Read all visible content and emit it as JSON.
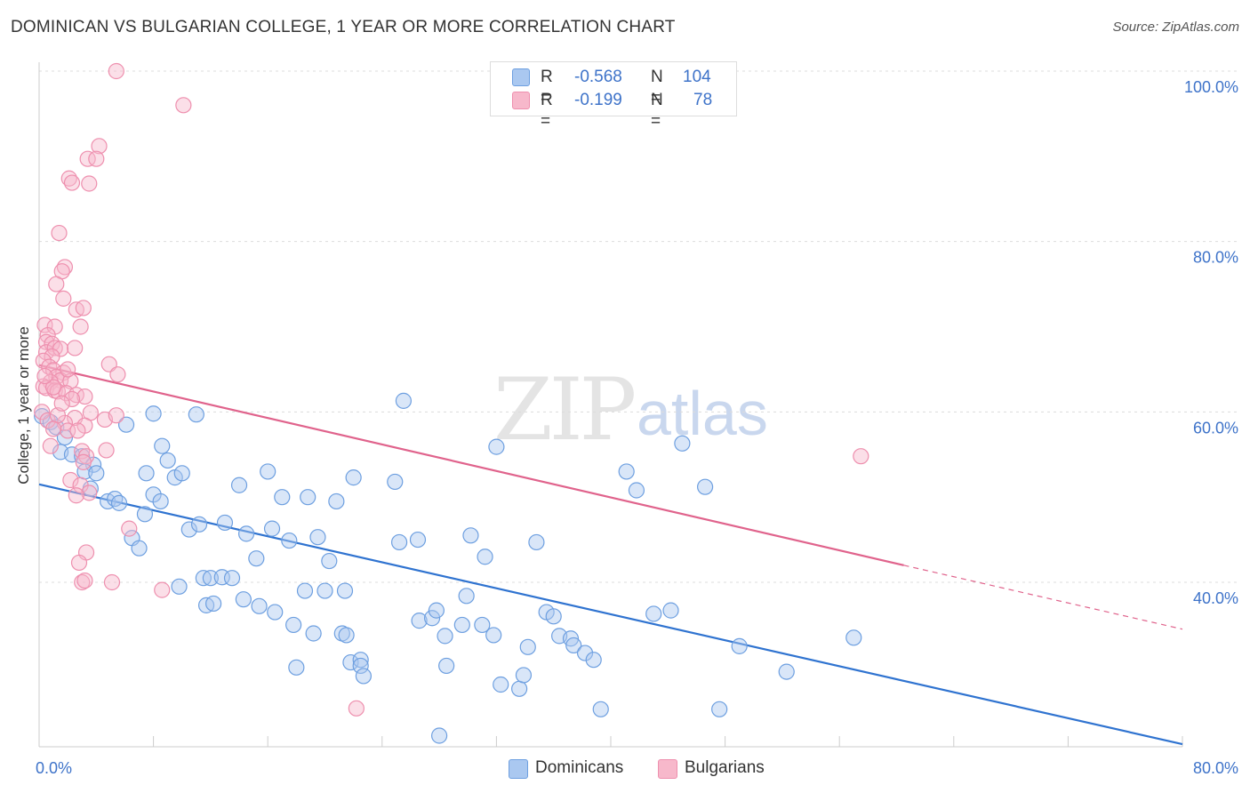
{
  "header": {
    "title": "DOMINICAN VS BULGARIAN COLLEGE, 1 YEAR OR MORE CORRELATION CHART",
    "source": "Source: ZipAtlas.com"
  },
  "watermark": {
    "zip": "ZIP",
    "atlas": "atlas"
  },
  "legend": {
    "rows": [
      {
        "r_label": "R =",
        "r_value": "-0.568",
        "n_label": "N =",
        "n_value": "104",
        "color": "#aac8f0"
      },
      {
        "r_label": "R =",
        "r_value": "-0.199",
        "n_label": "N =",
        "n_value": "78",
        "color": "#f7b8cb"
      }
    ]
  },
  "bottom_legend": {
    "dominicans": "Dominicans",
    "bulgarians": "Bulgarians"
  },
  "chart_data": {
    "type": "scatter",
    "ylabel": "College, 1 year or more",
    "xlim": [
      0,
      80
    ],
    "ylim": [
      20,
      103
    ],
    "x_ticks": [
      {
        "value": 0,
        "label": "0.0%"
      },
      {
        "value": 80,
        "label": "80.0%"
      }
    ],
    "y_ticks": [
      {
        "value": 100,
        "label": "100.0%"
      },
      {
        "value": 80,
        "label": "80.0%"
      },
      {
        "value": 60,
        "label": "60.0%"
      },
      {
        "value": 40,
        "label": "40.0%"
      }
    ],
    "grid": true,
    "legend_position": "top-center",
    "series": [
      {
        "name": "Dominicans",
        "color": "#6d9fe0",
        "fill": "#aac8f0",
        "trend": {
          "x0": 0,
          "y0": 51.5,
          "x1": 80,
          "y1": 21.0,
          "color": "#2f73d0"
        },
        "points": [
          [
            0.2,
            59.5
          ],
          [
            0.8,
            58.8
          ],
          [
            1.2,
            58.2
          ],
          [
            1.8,
            57.0
          ],
          [
            1.5,
            55.3
          ],
          [
            2.3,
            55.0
          ],
          [
            3.0,
            54.8
          ],
          [
            3.8,
            53.8
          ],
          [
            3.2,
            53.0
          ],
          [
            4.0,
            52.8
          ],
          [
            3.6,
            51.0
          ],
          [
            4.8,
            49.5
          ],
          [
            5.3,
            49.8
          ],
          [
            5.6,
            49.3
          ],
          [
            6.1,
            58.5
          ],
          [
            8.0,
            59.8
          ],
          [
            11.0,
            59.7
          ],
          [
            6.5,
            45.2
          ],
          [
            7.0,
            44.0
          ],
          [
            7.5,
            52.8
          ],
          [
            7.4,
            48.0
          ],
          [
            8.0,
            50.3
          ],
          [
            8.5,
            49.5
          ],
          [
            8.6,
            56.0
          ],
          [
            9.0,
            54.3
          ],
          [
            9.5,
            52.3
          ],
          [
            10.0,
            52.8
          ],
          [
            10.5,
            46.2
          ],
          [
            11.2,
            46.8
          ],
          [
            9.8,
            39.5
          ],
          [
            11.5,
            40.5
          ],
          [
            12.0,
            40.5
          ],
          [
            11.7,
            37.3
          ],
          [
            12.2,
            37.5
          ],
          [
            12.8,
            40.6
          ],
          [
            13.5,
            40.5
          ],
          [
            13.0,
            47.0
          ],
          [
            14.0,
            51.4
          ],
          [
            14.5,
            45.7
          ],
          [
            15.2,
            42.8
          ],
          [
            14.3,
            38.0
          ],
          [
            15.4,
            37.2
          ],
          [
            16.5,
            36.5
          ],
          [
            16.0,
            53.0
          ],
          [
            16.3,
            46.3
          ],
          [
            17.0,
            50.0
          ],
          [
            17.5,
            44.9
          ],
          [
            17.8,
            35.0
          ],
          [
            18.0,
            30.0
          ],
          [
            18.6,
            39.0
          ],
          [
            18.8,
            50.0
          ],
          [
            19.2,
            34.0
          ],
          [
            19.5,
            45.3
          ],
          [
            20.0,
            39.0
          ],
          [
            20.3,
            42.5
          ],
          [
            20.8,
            49.5
          ],
          [
            21.2,
            34.0
          ],
          [
            21.5,
            33.8
          ],
          [
            21.8,
            30.6
          ],
          [
            21.4,
            39.0
          ],
          [
            22.0,
            52.3
          ],
          [
            22.5,
            30.9
          ],
          [
            22.5,
            30.2
          ],
          [
            22.7,
            29.0
          ],
          [
            24.9,
            51.8
          ],
          [
            25.2,
            44.7
          ],
          [
            25.5,
            61.3
          ],
          [
            26.6,
            35.5
          ],
          [
            27.5,
            35.8
          ],
          [
            27.8,
            36.7
          ],
          [
            28.0,
            22.0
          ],
          [
            28.4,
            33.7
          ],
          [
            28.5,
            30.2
          ],
          [
            29.6,
            35.0
          ],
          [
            29.9,
            38.4
          ],
          [
            30.2,
            45.5
          ],
          [
            31.0,
            35.0
          ],
          [
            31.8,
            33.8
          ],
          [
            32.0,
            55.9
          ],
          [
            32.3,
            28.0
          ],
          [
            33.6,
            27.5
          ],
          [
            33.9,
            29.1
          ],
          [
            34.2,
            32.4
          ],
          [
            35.5,
            36.5
          ],
          [
            36.0,
            36.0
          ],
          [
            36.4,
            33.7
          ],
          [
            37.2,
            33.4
          ],
          [
            37.4,
            32.6
          ],
          [
            38.2,
            31.7
          ],
          [
            38.8,
            30.9
          ],
          [
            39.3,
            25.1
          ],
          [
            41.1,
            53.0
          ],
          [
            41.8,
            50.8
          ],
          [
            43.0,
            36.3
          ],
          [
            44.2,
            36.7
          ],
          [
            45.0,
            56.3
          ],
          [
            46.6,
            51.2
          ],
          [
            47.6,
            25.1
          ],
          [
            49.0,
            32.5
          ],
          [
            52.3,
            29.5
          ],
          [
            57.0,
            33.5
          ],
          [
            26.5,
            45.0
          ],
          [
            34.8,
            44.7
          ],
          [
            31.2,
            43.0
          ]
        ]
      },
      {
        "name": "Bulgarians",
        "color": "#ee8fae",
        "fill": "#f7b8cb",
        "trend": {
          "x0": 0,
          "y0": 65.5,
          "x1": 60.5,
          "y1": 42.0,
          "color": "#e0638c",
          "dash_to_x": 80,
          "dash_to_y": 34.5
        },
        "points": [
          [
            5.4,
            100.0
          ],
          [
            10.1,
            96.0
          ],
          [
            4.2,
            91.2
          ],
          [
            3.4,
            89.7
          ],
          [
            4.0,
            89.7
          ],
          [
            2.1,
            87.4
          ],
          [
            2.3,
            86.9
          ],
          [
            3.5,
            86.8
          ],
          [
            1.4,
            81.0
          ],
          [
            1.8,
            77.0
          ],
          [
            1.6,
            76.5
          ],
          [
            1.2,
            75.0
          ],
          [
            1.7,
            73.3
          ],
          [
            2.6,
            72.0
          ],
          [
            3.1,
            72.2
          ],
          [
            2.9,
            70.0
          ],
          [
            0.4,
            70.2
          ],
          [
            1.1,
            70.0
          ],
          [
            0.6,
            69.0
          ],
          [
            0.5,
            68.2
          ],
          [
            0.9,
            68.0
          ],
          [
            0.5,
            67.0
          ],
          [
            1.1,
            67.5
          ],
          [
            1.5,
            67.4
          ],
          [
            2.5,
            67.5
          ],
          [
            0.9,
            66.5
          ],
          [
            0.3,
            66.0
          ],
          [
            0.7,
            65.3
          ],
          [
            1.0,
            64.9
          ],
          [
            1.7,
            64.6
          ],
          [
            1.2,
            64.1
          ],
          [
            1.5,
            63.7
          ],
          [
            2.2,
            63.6
          ],
          [
            0.8,
            63.5
          ],
          [
            0.3,
            63.0
          ],
          [
            0.5,
            62.8
          ],
          [
            1.1,
            62.5
          ],
          [
            1.3,
            62.4
          ],
          [
            1.9,
            62.2
          ],
          [
            2.6,
            62.0
          ],
          [
            3.2,
            61.8
          ],
          [
            2.3,
            61.5
          ],
          [
            3.6,
            59.9
          ],
          [
            4.6,
            59.1
          ],
          [
            5.4,
            59.6
          ],
          [
            2.5,
            59.3
          ],
          [
            1.8,
            58.7
          ],
          [
            3.2,
            58.4
          ],
          [
            2.0,
            57.8
          ],
          [
            3.0,
            55.4
          ],
          [
            3.3,
            54.8
          ],
          [
            4.7,
            55.5
          ],
          [
            3.1,
            54.1
          ],
          [
            2.2,
            52.0
          ],
          [
            2.9,
            51.4
          ],
          [
            3.5,
            50.5
          ],
          [
            2.6,
            50.2
          ],
          [
            6.3,
            46.3
          ],
          [
            3.3,
            43.5
          ],
          [
            2.8,
            42.3
          ],
          [
            3.0,
            40.0
          ],
          [
            3.2,
            40.2
          ],
          [
            5.1,
            40.0
          ],
          [
            8.6,
            39.1
          ],
          [
            22.2,
            25.2
          ],
          [
            57.5,
            54.8
          ],
          [
            4.9,
            65.6
          ],
          [
            5.5,
            64.4
          ],
          [
            1.0,
            62.9
          ],
          [
            0.2,
            60.0
          ],
          [
            0.6,
            59.0
          ],
          [
            1.3,
            59.6
          ],
          [
            2.7,
            57.8
          ],
          [
            0.8,
            56.0
          ],
          [
            1.0,
            58.0
          ],
          [
            1.6,
            61.0
          ],
          [
            2.0,
            65.0
          ],
          [
            0.4,
            64.2
          ]
        ]
      }
    ]
  }
}
